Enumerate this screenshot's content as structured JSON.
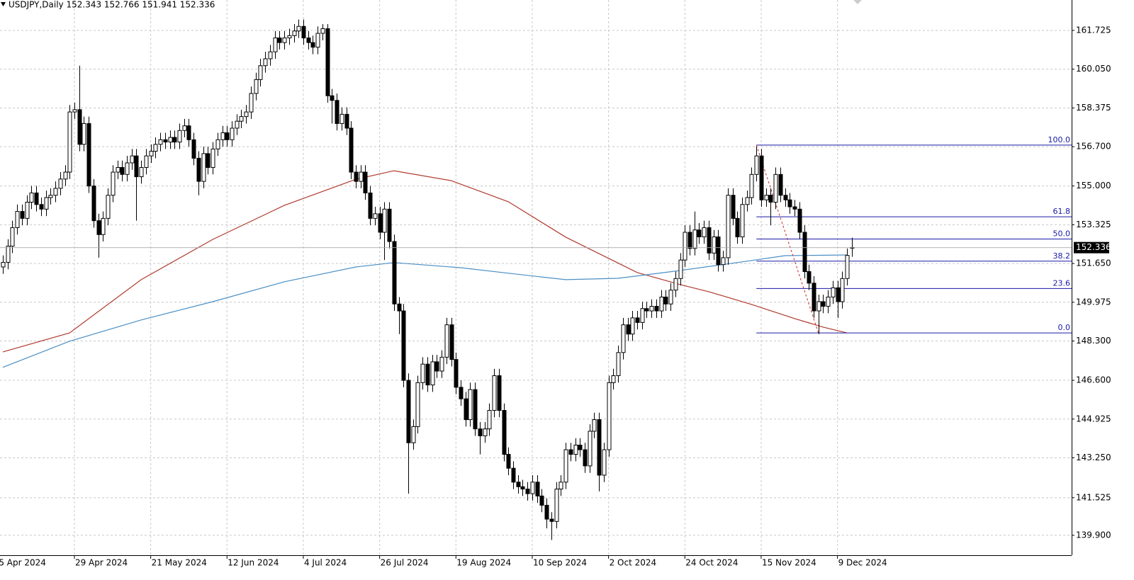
{
  "chart_data": {
    "type": "candlestick",
    "title": "USDJPY,Daily  152.343 152.766 151.941 152.336",
    "open": [
      151.5,
      151.7,
      152.4,
      153.2,
      153.9,
      153.6,
      154.3,
      154.7,
      154.2,
      154.0,
      154.5,
      154.6,
      154.9,
      155.3,
      155.6,
      158.2,
      158.3,
      156.8,
      157.7,
      155.0,
      153.5,
      152.9,
      153.6,
      154.6,
      155.6,
      155.8,
      155.5,
      156.0,
      156.3,
      155.4,
      155.8,
      156.3,
      156.5,
      156.8,
      157.0,
      156.9,
      157.1,
      156.9,
      157.4,
      157.6,
      157.0,
      156.2,
      155.2,
      156.4,
      155.8,
      156.6,
      157.0,
      157.3,
      157.0,
      157.5,
      157.8,
      158.0,
      158.2,
      159.0,
      159.6,
      160.2,
      160.5,
      160.8,
      161.4,
      161.2,
      161.4,
      161.5,
      161.7,
      161.9,
      161.4,
      161.2,
      161.0,
      161.6,
      161.8,
      158.9,
      158.7,
      157.7,
      158.1,
      157.5,
      155.6,
      155.2,
      155.6,
      154.7,
      153.6,
      153.8,
      153.0,
      154.0,
      152.6,
      149.9,
      149.6,
      146.6,
      143.9,
      144.6,
      146.5,
      147.3,
      146.4,
      147.4,
      147.0,
      147.6,
      149.0,
      147.5,
      146.3,
      145.8,
      144.9,
      146.2,
      144.5,
      144.2,
      144.5,
      145.3,
      146.8,
      145.3,
      143.4,
      142.8,
      142.2,
      142.0,
      141.9,
      141.7,
      142.2,
      141.6,
      141.2,
      140.6,
      140.5,
      141.9,
      142.2,
      143.6,
      143.4,
      143.8,
      143.6,
      142.9,
      144.4,
      144.9,
      142.5,
      143.6,
      146.5,
      146.8,
      147.8,
      149.0,
      148.6,
      149.3,
      149.1,
      149.7,
      149.6,
      149.8,
      149.6,
      150.2,
      149.9,
      150.5,
      151.0,
      151.8,
      153.0,
      152.3,
      153.1,
      152.8,
      153.2,
      152.1,
      152.8,
      151.6,
      151.9,
      154.6,
      153.6,
      152.8,
      154.2,
      154.5,
      155.5,
      156.3,
      154.4,
      154.6,
      154.3,
      155.5,
      154.6,
      154.4,
      154.1,
      154.0,
      153.0,
      151.3,
      150.8,
      149.6,
      150.0,
      149.8,
      150.2,
      150.6,
      150.0,
      151.0,
      152.343
    ],
    "high": [
      152.0,
      152.7,
      153.5,
      154.2,
      154.2,
      154.6,
      155.0,
      155.0,
      154.5,
      154.8,
      154.9,
      155.2,
      155.6,
      155.9,
      158.5,
      158.6,
      160.2,
      158.0,
      158.0,
      155.3,
      153.8,
      153.9,
      154.9,
      155.9,
      156.1,
      156.1,
      156.3,
      156.6,
      156.6,
      156.1,
      156.6,
      156.8,
      157.1,
      157.3,
      157.3,
      157.4,
      157.4,
      157.7,
      157.9,
      157.9,
      157.3,
      156.5,
      156.7,
      156.7,
      156.9,
      157.3,
      157.6,
      157.6,
      157.8,
      158.1,
      158.3,
      158.5,
      159.3,
      159.9,
      160.5,
      160.8,
      161.1,
      161.7,
      161.7,
      161.7,
      161.8,
      162.0,
      162.2,
      162.2,
      161.7,
      161.5,
      161.9,
      162.0,
      162.0,
      159.2,
      159.0,
      158.4,
      158.4,
      157.8,
      155.9,
      155.9,
      155.9,
      155.0,
      154.1,
      154.1,
      154.3,
      154.3,
      152.9,
      150.2,
      149.9,
      146.9,
      144.9,
      146.8,
      147.6,
      147.6,
      147.7,
      147.7,
      147.9,
      149.3,
      149.3,
      147.8,
      146.6,
      146.1,
      146.5,
      146.5,
      144.8,
      144.8,
      145.6,
      147.1,
      147.1,
      145.6,
      143.7,
      143.1,
      142.5,
      142.3,
      142.2,
      142.5,
      142.5,
      141.9,
      141.5,
      140.9,
      142.2,
      142.5,
      143.9,
      143.9,
      144.1,
      144.1,
      143.9,
      144.7,
      145.2,
      145.2,
      143.9,
      146.8,
      147.1,
      148.1,
      149.3,
      149.3,
      149.6,
      149.6,
      150.0,
      150.0,
      150.1,
      150.1,
      150.5,
      150.5,
      150.8,
      151.3,
      152.1,
      153.3,
      153.3,
      153.9,
      153.4,
      153.5,
      153.5,
      153.1,
      153.1,
      152.2,
      154.9,
      154.9,
      153.9,
      154.5,
      154.8,
      155.8,
      156.7,
      156.6,
      154.9,
      154.9,
      155.8,
      155.8,
      154.9,
      154.7,
      154.4,
      154.3,
      153.3,
      151.6,
      151.1,
      150.3,
      150.3,
      150.5,
      150.9,
      150.9,
      151.3,
      152.3,
      152.766
    ],
    "low": [
      151.2,
      151.4,
      152.1,
      152.9,
      153.3,
      153.3,
      154.0,
      153.9,
      153.7,
      153.7,
      154.2,
      154.3,
      154.6,
      155.0,
      155.3,
      157.9,
      156.5,
      156.5,
      154.7,
      153.2,
      151.9,
      152.6,
      153.3,
      154.3,
      155.3,
      155.2,
      155.2,
      155.7,
      153.5,
      155.1,
      155.5,
      156.0,
      156.2,
      156.5,
      156.6,
      156.6,
      156.6,
      156.6,
      157.1,
      156.7,
      155.9,
      154.6,
      154.9,
      155.5,
      155.5,
      156.3,
      156.7,
      156.7,
      156.7,
      157.2,
      157.5,
      157.7,
      157.9,
      158.7,
      159.3,
      159.9,
      160.2,
      160.5,
      160.9,
      160.9,
      161.1,
      161.2,
      161.4,
      161.1,
      160.9,
      160.7,
      160.7,
      161.3,
      158.6,
      157.7,
      157.4,
      157.4,
      157.2,
      155.3,
      154.9,
      154.9,
      154.4,
      153.3,
      153.3,
      152.7,
      151.8,
      152.3,
      149.6,
      148.6,
      146.3,
      141.7,
      143.6,
      144.3,
      146.2,
      146.1,
      146.1,
      146.7,
      146.7,
      147.3,
      147.2,
      146.0,
      145.5,
      144.6,
      144.6,
      144.2,
      143.4,
      143.9,
      144.2,
      145.0,
      145.0,
      143.1,
      142.5,
      141.9,
      141.7,
      141.6,
      141.4,
      141.4,
      141.3,
      140.9,
      140.2,
      139.7,
      140.2,
      141.6,
      141.9,
      143.1,
      143.1,
      143.3,
      142.6,
      142.6,
      144.1,
      141.8,
      142.2,
      143.3,
      146.2,
      146.5,
      147.5,
      148.3,
      148.3,
      148.8,
      148.8,
      149.3,
      149.3,
      149.3,
      149.3,
      149.6,
      149.6,
      150.2,
      150.7,
      151.5,
      152.0,
      152.0,
      152.5,
      152.5,
      151.8,
      151.8,
      151.3,
      151.3,
      151.6,
      153.3,
      152.5,
      152.5,
      153.9,
      154.2,
      155.2,
      154.1,
      154.1,
      153.3,
      154.0,
      154.3,
      154.1,
      153.8,
      153.7,
      152.7,
      151.0,
      150.5,
      149.3,
      148.6,
      149.5,
      149.5,
      149.9,
      149.3,
      149.7,
      150.7,
      151.941
    ],
    "close": [
      151.7,
      152.4,
      153.2,
      153.9,
      153.6,
      154.3,
      154.7,
      154.2,
      154.0,
      154.5,
      154.6,
      154.9,
      155.3,
      155.6,
      158.2,
      158.3,
      156.8,
      157.7,
      155.0,
      153.5,
      152.9,
      153.6,
      154.6,
      155.6,
      155.8,
      155.5,
      156.0,
      156.3,
      155.4,
      155.8,
      156.3,
      156.5,
      156.8,
      157.0,
      156.9,
      157.1,
      156.9,
      157.4,
      157.6,
      157.0,
      156.2,
      155.2,
      156.4,
      155.8,
      156.6,
      157.0,
      157.3,
      157.0,
      157.5,
      157.8,
      158.0,
      158.2,
      159.0,
      159.6,
      160.2,
      160.5,
      160.8,
      161.4,
      161.2,
      161.4,
      161.5,
      161.7,
      161.9,
      161.4,
      161.2,
      161.0,
      161.6,
      161.8,
      158.9,
      158.7,
      157.7,
      158.1,
      157.5,
      155.6,
      155.2,
      155.6,
      154.7,
      153.6,
      153.8,
      153.0,
      154.0,
      152.6,
      149.9,
      149.6,
      146.6,
      143.9,
      144.6,
      146.5,
      147.3,
      146.4,
      147.4,
      147.0,
      147.6,
      149.0,
      147.5,
      146.3,
      145.8,
      144.9,
      146.2,
      144.5,
      144.2,
      144.5,
      145.3,
      146.8,
      145.3,
      143.4,
      142.8,
      142.2,
      142.0,
      141.9,
      141.7,
      142.2,
      141.6,
      141.2,
      140.6,
      140.5,
      141.9,
      142.2,
      143.6,
      143.4,
      143.8,
      143.6,
      142.9,
      144.4,
      144.9,
      142.5,
      143.6,
      146.5,
      146.8,
      147.8,
      149.0,
      148.6,
      149.3,
      149.1,
      149.7,
      149.6,
      149.8,
      149.6,
      150.2,
      149.9,
      150.5,
      151.0,
      151.8,
      153.0,
      152.3,
      153.1,
      152.8,
      153.2,
      152.1,
      152.8,
      151.6,
      151.9,
      154.6,
      153.6,
      152.8,
      154.2,
      154.5,
      155.5,
      156.3,
      154.4,
      154.6,
      154.3,
      155.5,
      154.6,
      154.4,
      154.1,
      154.0,
      153.0,
      151.3,
      150.8,
      149.6,
      150.0,
      149.8,
      150.2,
      150.6,
      150.0,
      151.0,
      152.0,
      152.336
    ],
    "xlim": [
      -0.6,
      224.1
    ],
    "ylim": [
      139.04,
      163.04
    ],
    "yticks": [
      161.725,
      {
        "value": 160.05,
        "label": "160.050"
      },
      158.375,
      {
        "value": 156.7,
        "label": "156.700"
      },
      {
        "value": 155.0,
        "label": "155.000"
      },
      153.325,
      {
        "value": 151.65,
        "label": "151.650"
      },
      149.975,
      {
        "value": 148.3,
        "label": "148.300"
      },
      {
        "value": 146.6,
        "label": "146.600"
      },
      144.925,
      {
        "value": 143.25,
        "label": "143.250"
      },
      141.525,
      {
        "value": 139.9,
        "label": "139.900"
      }
    ],
    "xticks": [
      {
        "value": -1,
        "label": "5 Apr 2024"
      },
      {
        "value": 15,
        "label": "29 Apr 2024"
      },
      {
        "value": 31,
        "label": "21 May 2024"
      },
      {
        "value": 47,
        "label": "12 Jun 2024"
      },
      {
        "value": 63,
        "label": "4 Jul 2024"
      },
      {
        "value": 79,
        "label": "26 Jul 2024"
      },
      {
        "value": 95,
        "label": "19 Aug 2024"
      },
      {
        "value": 111,
        "label": "10 Sep 2024"
      },
      {
        "value": 127,
        "label": "2 Oct 2024"
      },
      {
        "value": 143,
        "label": "24 Oct 2024"
      },
      {
        "value": 159,
        "label": "15 Nov 2024"
      },
      {
        "value": 175,
        "label": "9 Dec 2024"
      }
    ],
    "grid": true,
    "up_color": "#ffffff",
    "down_color": "#000000",
    "moving_averages": [
      {
        "color": "#b03a2e",
        "index": [
          0,
          14,
          29,
          44,
          59,
          74,
          82,
          94,
          106,
          118,
          133,
          142,
          148,
          157,
          166,
          172,
          177
        ],
        "values": [
          147.83,
          148.65,
          150.95,
          152.69,
          154.16,
          155.29,
          155.66,
          155.23,
          154.32,
          152.79,
          151.26,
          150.74,
          150.43,
          149.88,
          149.27,
          148.9,
          148.65
        ]
      },
      {
        "color": "#4a8fc4",
        "index": [
          0,
          14,
          29,
          44,
          59,
          74,
          82,
          96,
          106,
          118,
          129,
          141,
          155,
          164,
          177
        ],
        "values": [
          147.16,
          148.29,
          149.21,
          150.0,
          150.86,
          151.5,
          151.69,
          151.47,
          151.23,
          150.95,
          151.01,
          151.32,
          151.72,
          151.99,
          152.02
        ]
      }
    ],
    "fib": {
      "color": "#1a1aa6",
      "start": 158,
      "end": 171,
      "levels": [
        {
          "label": "100.0",
          "value": 156.77
        },
        {
          "label": "61.8",
          "value": 153.67
        },
        {
          "label": "50.0",
          "value": 152.71
        },
        {
          "label": "38.2",
          "value": 151.75
        },
        {
          "label": "23.6",
          "value": 150.57
        },
        {
          "label": "0.0",
          "value": 148.65
        }
      ]
    }
  }
}
